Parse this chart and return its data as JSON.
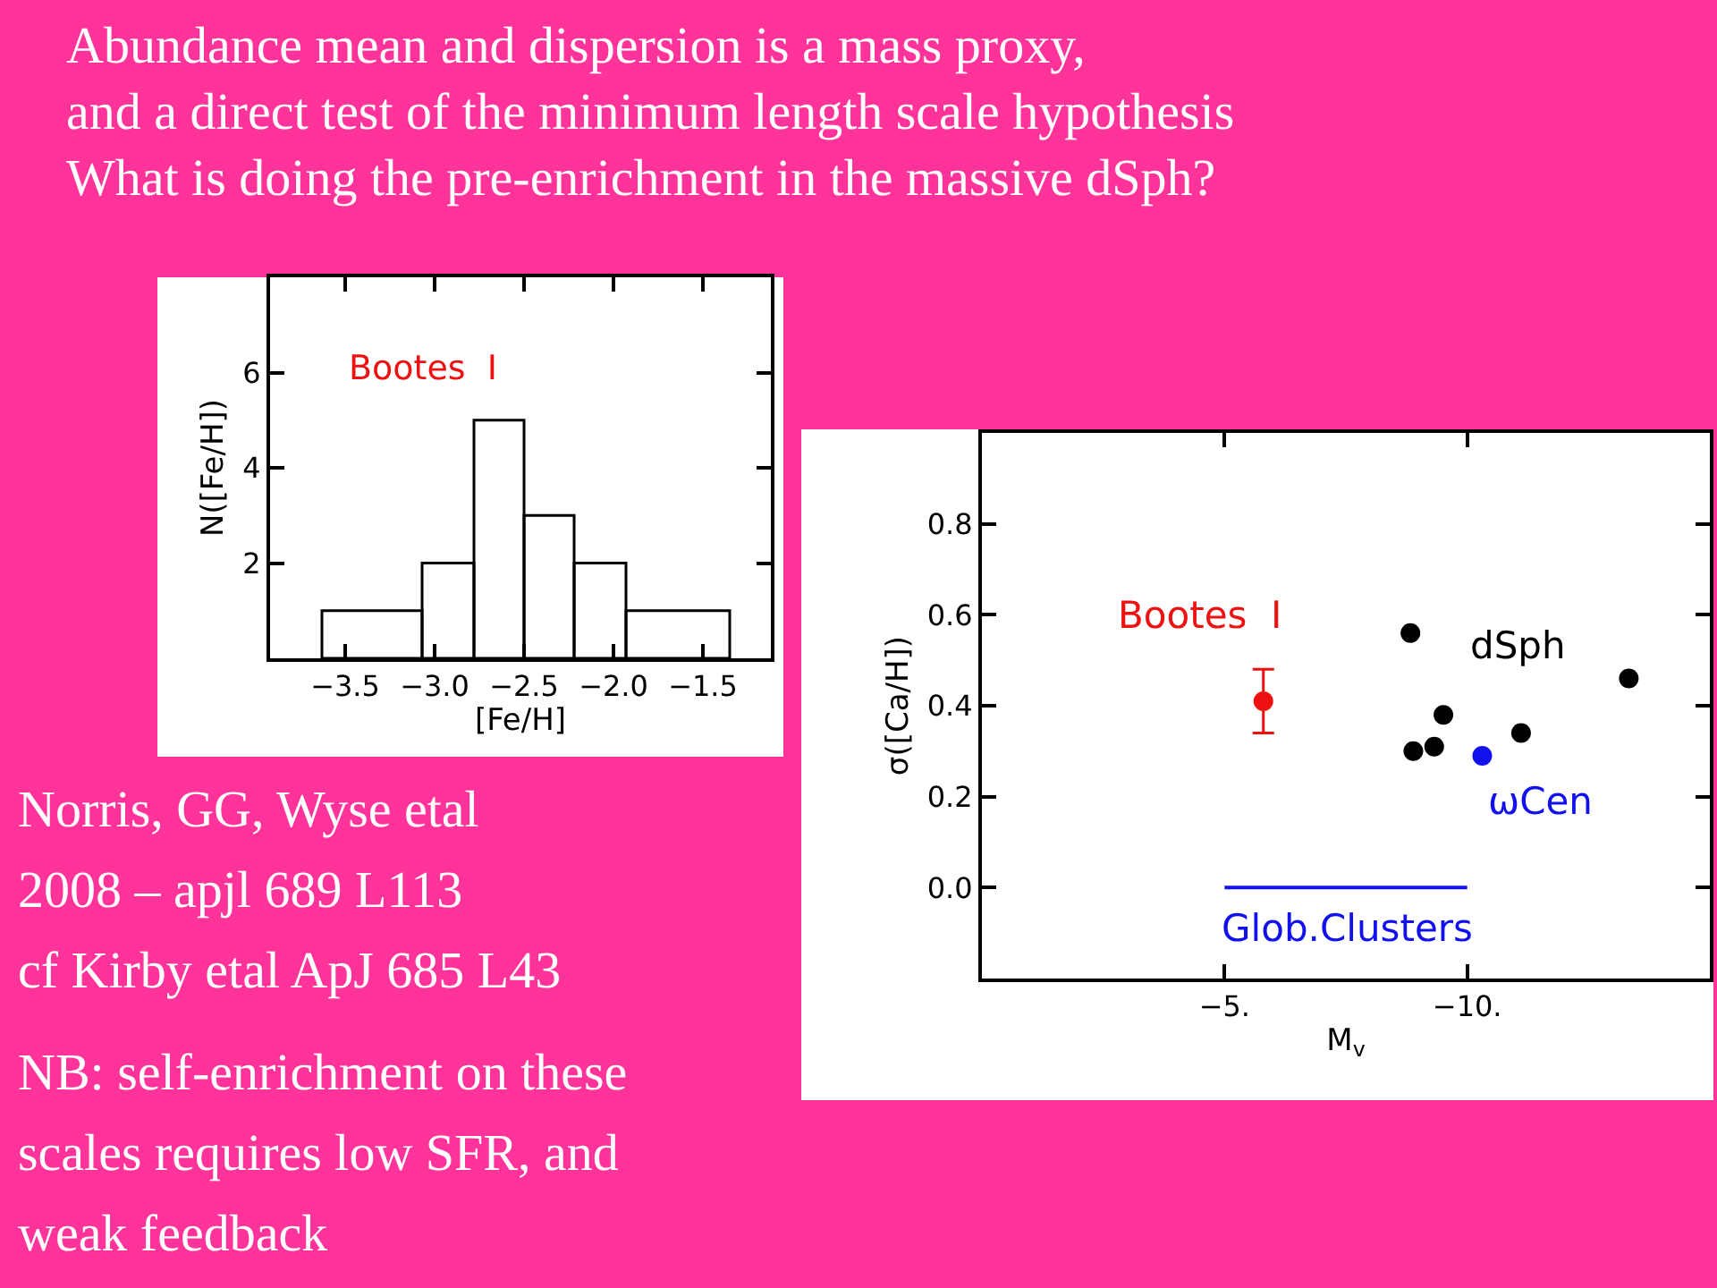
{
  "chart_data": [
    {
      "type": "histogram",
      "title": "Abundance mean and dispersion is a mass proxy,\nand a direct test of the minimum length scale hypothesis\nWhat is doing the pre-enrichment in the massive dSph?",
      "xlabel": "[Fe/H]",
      "ylabel": "N([Fe/H])",
      "annotations": [
        "Bootes  I"
      ],
      "bins": [
        -3.63,
        -3.07,
        -2.78,
        -2.5,
        -2.22,
        -1.93,
        -1.35
      ],
      "values": [
        1,
        2,
        5,
        3,
        2,
        1
      ],
      "color": "#000000",
      "xlim": [
        -3.92,
        -1.12
      ],
      "ylim": [
        0,
        8
      ],
      "xticks": [
        {
          "value": -3.5,
          "label": "−3.5"
        },
        {
          "value": -3.0,
          "label": "−3.0"
        },
        {
          "value": -2.5,
          "label": "−2.5"
        },
        {
          "value": -2.0,
          "label": "−2.0"
        },
        {
          "value": -1.5,
          "label": "−1.5"
        }
      ],
      "yticks": [
        2,
        4,
        6
      ]
    },
    {
      "type": "scatter",
      "xlabel": "M$_{v}$",
      "ylabel": "σ([Ca/H])",
      "xlim": [
        0,
        -15
      ],
      "ylim": [
        -0.2,
        1.0
      ],
      "xticks": [
        {
          "value": -5,
          "label": "−5."
        },
        {
          "value": -10,
          "label": "−10."
        }
      ],
      "yticks": [
        {
          "value": 0,
          "label": "0.0"
        },
        {
          "value": 0.2,
          "label": "0.2"
        },
        {
          "value": 0.4,
          "label": "0.4"
        },
        {
          "value": 0.6,
          "label": "0.6"
        },
        {
          "value": 0.8,
          "label": "0.8"
        }
      ],
      "marker": "circle",
      "series": [
        {
          "name": "Bootes  I",
          "color": "#ee1111",
          "x": [
            -5.8
          ],
          "values": [
            0.41
          ],
          "errors": [
            [
              0.34,
              0.48
            ]
          ]
        },
        {
          "name": "dSph",
          "color": "#000000",
          "x": [
            -8.83,
            -8.89,
            -9.32,
            -9.51,
            -11.11,
            -13.33
          ],
          "values": [
            0.56,
            0.3,
            0.31,
            0.38,
            0.34,
            0.46
          ]
        },
        {
          "name": "ωCen",
          "color": "#1111ee",
          "x": [
            -10.31
          ],
          "values": [
            0.29
          ]
        },
        {
          "name": "Glob.Clusters",
          "type": "line",
          "marker": "none",
          "color": "#1111ee",
          "x": [
            -5,
            -10
          ],
          "values": [
            0,
            0
          ]
        }
      ]
    },
    {
      "type": "other",
      "annotations": [
        "Norris, GG, Wyse etal",
        "2008 – apjl 689 L113",
        "cf Kirby etal ApJ 685 L43",
        "NB: self-enrichment on these",
        "scales requires low SFR, and",
        "weak feedback"
      ]
    }
  ]
}
